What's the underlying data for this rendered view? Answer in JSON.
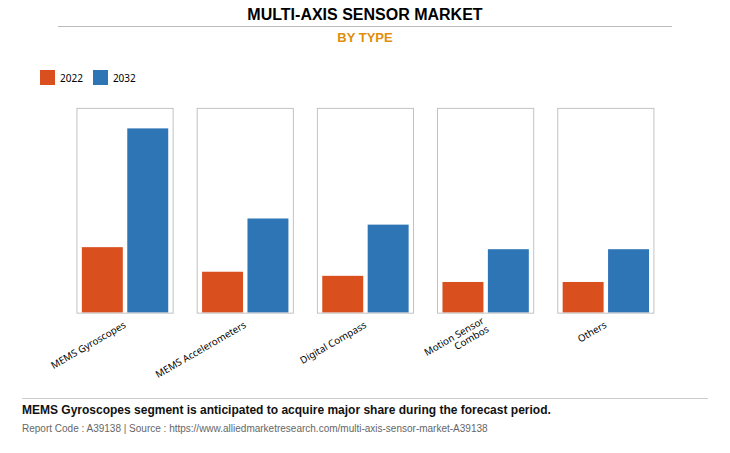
{
  "chart_data": {
    "type": "bar",
    "title": "MULTI-AXIS SENSOR MARKET",
    "subtitle": "BY TYPE",
    "categories": [
      "MEMS Gyroscopes",
      "MEMS Accelerometers",
      "Digital Compass",
      "Motion Sensor\nCombos",
      "Others"
    ],
    "series": [
      {
        "name": "2022",
        "color": "#d94f1e",
        "values": [
          3.2,
          2.0,
          1.8,
          1.5,
          1.5
        ]
      },
      {
        "name": "2032",
        "color": "#2e75b6",
        "values": [
          9.0,
          4.6,
          4.3,
          3.1,
          3.1
        ]
      }
    ],
    "ylim": [
      0,
      10
    ],
    "yticks": [],
    "tick_labels": "x",
    "grid": false,
    "legend": "top",
    "annotations": [
      "MEMS Gyroscopes segment is anticipated to acquire major share during the forecast period.",
      "Report Code : A39138  |  Source : https://www.alliedmarketresearch.com/multi-axis-sensor-market-A39138"
    ]
  }
}
